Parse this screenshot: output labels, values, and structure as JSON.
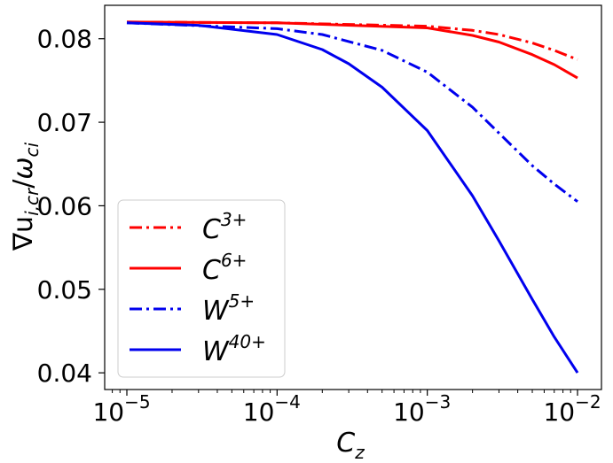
{
  "chart_data": {
    "type": "line",
    "x_scale": "log",
    "xlim": [
      1e-05,
      0.01
    ],
    "ylim": [
      0.038,
      0.084
    ],
    "xlabel": {
      "base": "C",
      "sub": "z"
    },
    "ylabel": {
      "base": "∇u",
      "sub": "i,cr",
      "slash": "/",
      "base2": "ω",
      "sub2": "ci"
    },
    "x_ticks": [
      {
        "value": 1e-05,
        "base": "10",
        "exp": "−5"
      },
      {
        "value": 0.0001,
        "base": "10",
        "exp": "−4"
      },
      {
        "value": 0.001,
        "base": "10",
        "exp": "−3"
      },
      {
        "value": 0.01,
        "base": "10",
        "exp": "−2"
      }
    ],
    "y_ticks": [
      {
        "value": 0.04,
        "label": "0.04"
      },
      {
        "value": 0.05,
        "label": "0.05"
      },
      {
        "value": 0.06,
        "label": "0.06"
      },
      {
        "value": 0.07,
        "label": "0.07"
      },
      {
        "value": 0.08,
        "label": "0.08"
      }
    ],
    "grid": false,
    "legend_position": "lower-left",
    "series": [
      {
        "name": {
          "base": "C",
          "sup": "3+"
        },
        "color": "#ff0000",
        "dash": "dashdot",
        "x": [
          1e-05,
          0.0001,
          0.001,
          0.002,
          0.003,
          0.005,
          0.007,
          0.01
        ],
        "y": [
          0.082,
          0.0819,
          0.0815,
          0.081,
          0.0805,
          0.0795,
          0.0786,
          0.0775
        ]
      },
      {
        "name": {
          "base": "C",
          "sup": "6+"
        },
        "color": "#ff0000",
        "dash": "solid",
        "x": [
          1e-05,
          0.0001,
          0.001,
          0.002,
          0.003,
          0.005,
          0.007,
          0.01
        ],
        "y": [
          0.082,
          0.0819,
          0.0813,
          0.0804,
          0.0796,
          0.0781,
          0.0769,
          0.0753
        ]
      },
      {
        "name": {
          "base": "W",
          "sup": "5+"
        },
        "color": "#0000ee",
        "dash": "dashdot",
        "x": [
          1e-05,
          0.0001,
          0.0002,
          0.0005,
          0.001,
          0.002,
          0.003,
          0.005,
          0.007,
          0.01
        ],
        "y": [
          0.0819,
          0.0812,
          0.0805,
          0.0786,
          0.076,
          0.0718,
          0.0687,
          0.0648,
          0.0626,
          0.0605
        ]
      },
      {
        "name": {
          "base": "W",
          "sup": "40+"
        },
        "color": "#0000ee",
        "dash": "solid",
        "x": [
          1e-05,
          3e-05,
          0.0001,
          0.0002,
          0.0003,
          0.0005,
          0.001,
          0.002,
          0.003,
          0.005,
          0.007,
          0.01
        ],
        "y": [
          0.0819,
          0.0816,
          0.0805,
          0.0787,
          0.077,
          0.0742,
          0.069,
          0.0612,
          0.0558,
          0.0488,
          0.0443,
          0.04
        ]
      }
    ]
  }
}
